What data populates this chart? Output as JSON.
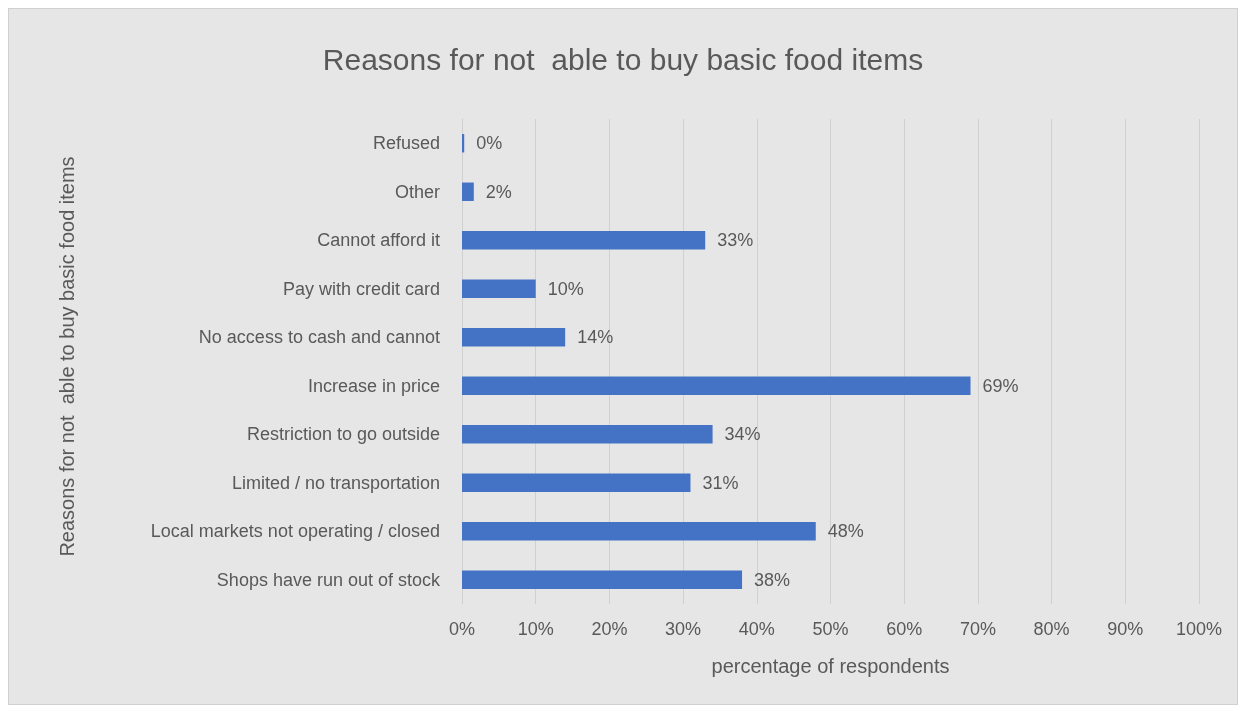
{
  "chart_data": {
    "type": "bar",
    "orientation": "horizontal",
    "title": "Reasons for not  able to buy basic food items",
    "xlabel": "percentage of respondents",
    "ylabel": "Reasons for not  able to buy basic food items",
    "categories": [
      "Refused",
      "Other",
      "Cannot afford it",
      "Pay with credit card",
      "No access to cash and cannot",
      "Increase in price",
      "Restriction to go outside",
      "Limited / no transportation",
      "Local markets not operating / closed",
      "Shops have run out of stock"
    ],
    "values": [
      0.3,
      1.6,
      33,
      10,
      14,
      69,
      34,
      31,
      48,
      38
    ],
    "value_labels": [
      "0%",
      "2%",
      "33%",
      "10%",
      "14%",
      "69%",
      "34%",
      "31%",
      "48%",
      "38%"
    ],
    "color": "#4472c4",
    "xlim": [
      0,
      100
    ],
    "xticks": [
      {
        "value": 0,
        "label": "0%"
      },
      {
        "value": 10,
        "label": "10%"
      },
      {
        "value": 20,
        "label": "20%"
      },
      {
        "value": 30,
        "label": "30%"
      },
      {
        "value": 40,
        "label": "40%"
      },
      {
        "value": 50,
        "label": "50%"
      },
      {
        "value": 60,
        "label": "60%"
      },
      {
        "value": 70,
        "label": "70%"
      },
      {
        "value": 80,
        "label": "80%"
      },
      {
        "value": 90,
        "label": "90%"
      },
      {
        "value": 100,
        "label": "100%"
      }
    ],
    "grid": "x"
  }
}
